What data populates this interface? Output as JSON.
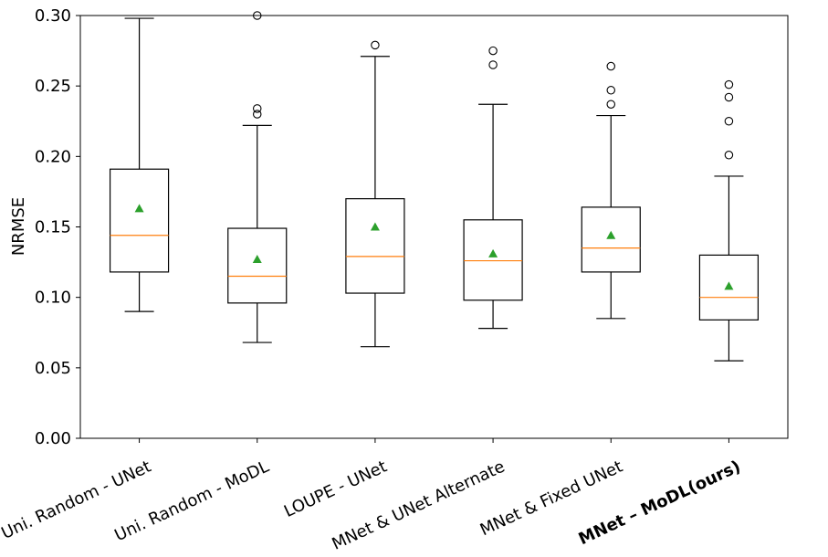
{
  "chart_data": {
    "type": "box",
    "title": "",
    "xlabel": "",
    "ylabel": "NRMSE",
    "ylim": [
      0.0,
      0.3
    ],
    "yticks": [
      "0.00",
      "0.05",
      "0.10",
      "0.15",
      "0.20",
      "0.25",
      "0.30"
    ],
    "ytick_values": [
      0.0,
      0.05,
      0.1,
      0.15,
      0.2,
      0.25,
      0.3
    ],
    "colors": {
      "box": "#000000",
      "median": "#ff7f0e",
      "mean": "#2ca02c"
    },
    "categories": [
      "Uni. Random - UNet",
      "Uni. Random - MoDL",
      "LOUPE - UNet",
      "MNet & UNet Alternate",
      "MNet & Fixed UNet",
      "MNet – MoDL(ours)"
    ],
    "boxes": [
      {
        "whisker_low": 0.09,
        "q1": 0.118,
        "median": 0.144,
        "q3": 0.191,
        "whisker_high": 0.298,
        "mean": 0.163,
        "outliers": []
      },
      {
        "whisker_low": 0.068,
        "q1": 0.096,
        "median": 0.115,
        "q3": 0.149,
        "whisker_high": 0.222,
        "mean": 0.127,
        "outliers": [
          0.23,
          0.234,
          0.3
        ]
      },
      {
        "whisker_low": 0.065,
        "q1": 0.103,
        "median": 0.129,
        "q3": 0.17,
        "whisker_high": 0.271,
        "mean": 0.15,
        "outliers": [
          0.279
        ]
      },
      {
        "whisker_low": 0.078,
        "q1": 0.098,
        "median": 0.126,
        "q3": 0.155,
        "whisker_high": 0.237,
        "mean": 0.131,
        "outliers": [
          0.265,
          0.275
        ]
      },
      {
        "whisker_low": 0.085,
        "q1": 0.118,
        "median": 0.135,
        "q3": 0.164,
        "whisker_high": 0.229,
        "mean": 0.144,
        "outliers": [
          0.237,
          0.247,
          0.264
        ]
      },
      {
        "whisker_low": 0.055,
        "q1": 0.084,
        "median": 0.1,
        "q3": 0.13,
        "whisker_high": 0.186,
        "mean": 0.108,
        "outliers": [
          0.201,
          0.225,
          0.242,
          0.251
        ]
      }
    ]
  }
}
